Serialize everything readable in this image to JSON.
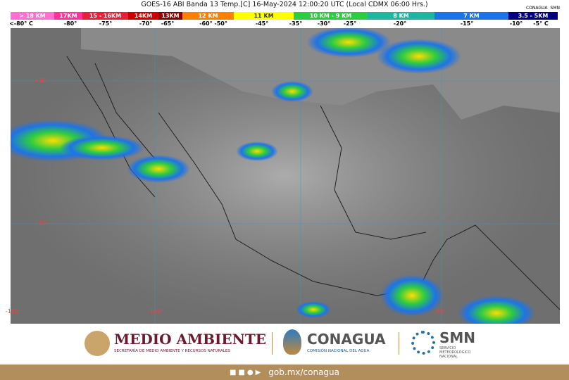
{
  "header": {
    "title": "GOES-16 ABI Banda 13 Temp.[C] 16-May-2024 12:00:20 UTC (Local CDMX  06:00 Hrs.)",
    "logo_conagua": "CONAGUA",
    "logo_smn": "SMN"
  },
  "legend": {
    "heights": [
      {
        "label": "> 18 KM",
        "color": "#ff6fd0"
      },
      {
        "label": "17KM",
        "color": "#ff3399"
      },
      {
        "label": "15 - 16KM",
        "color": "#e8203a"
      },
      {
        "label": "14KM",
        "color": "#d10000"
      },
      {
        "label": "13KM",
        "color": "#8b0000"
      },
      {
        "label": "12 KM",
        "color": "#ff7f00"
      },
      {
        "label": "11 KM",
        "color": "#ffff00"
      },
      {
        "label": "10 KM - 9 KM",
        "color": "#2ecc40"
      },
      {
        "label": "8 KM",
        "color": "#1fb5a0"
      },
      {
        "label": "7 KM",
        "color": "#1e73e8"
      },
      {
        "label": "3.5 - 5KM",
        "color": "#000080"
      }
    ],
    "temps": [
      "<-80° C",
      "-80°",
      "-75°",
      "-70°",
      "-65°",
      "-60° -50°",
      "-45°",
      "-35°",
      "-30°",
      "-25°",
      "-20°",
      "-15°",
      "-10°",
      "-5° C"
    ]
  },
  "map": {
    "lat_labels": [
      "+30°",
      "+20°"
    ],
    "lon_labels": [
      "-110°",
      "-100°",
      "-90°"
    ]
  },
  "footer": {
    "semarnat": "MEDIO AMBIENTE",
    "semarnat_sub": "SECRETARÍA DE MEDIO AMBIENTE Y RECURSOS NATURALES",
    "conagua": "CONAGUA",
    "conagua_sub": "COMISIÓN NACIONAL DEL AGUA",
    "smn": "SMN",
    "smn_sub": "SERVICIO METEOROLÓGICO NACIONAL",
    "url": "gob.mx/conagua"
  }
}
